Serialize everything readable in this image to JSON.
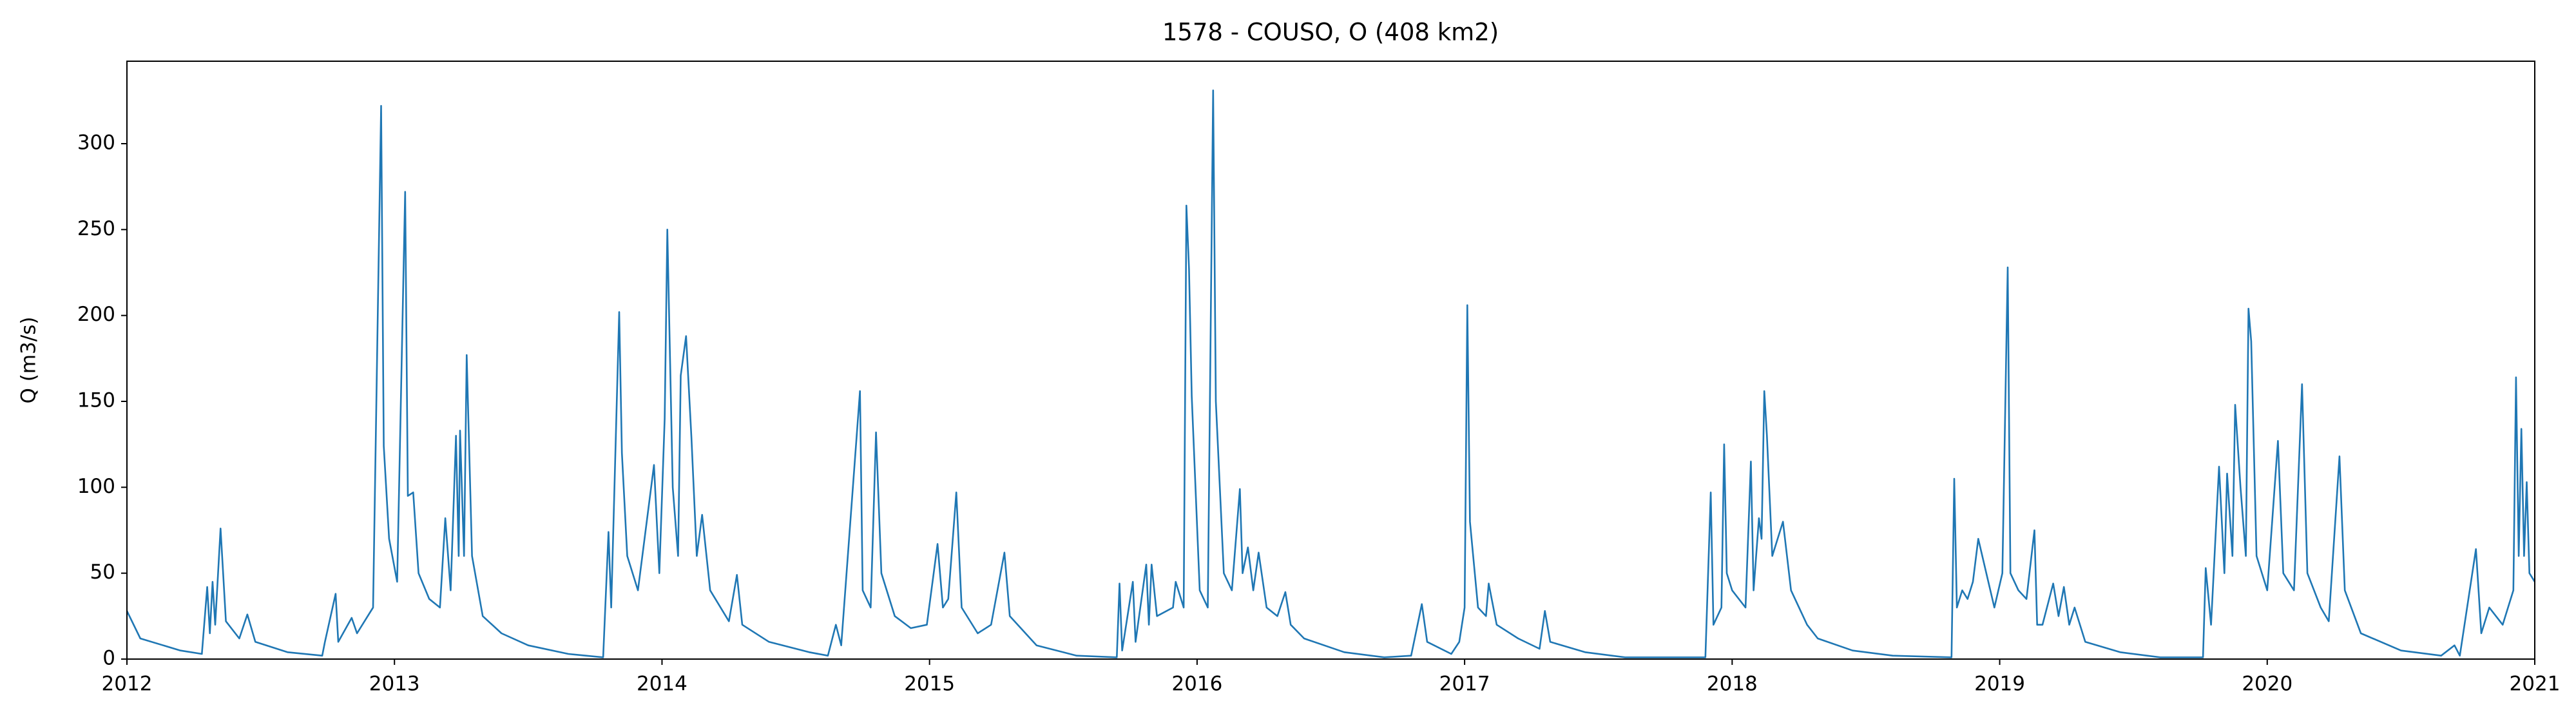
{
  "chart_data": {
    "type": "line",
    "title": "1578 - COUSO, O (408 km2)",
    "ylabel": "Q (m3/s)",
    "x": [
      2012.0,
      2012.05,
      2012.2,
      2012.28,
      2012.3,
      2012.31,
      2012.32,
      2012.33,
      2012.35,
      2012.37,
      2012.42,
      2012.45,
      2012.48,
      2012.6,
      2012.73,
      2012.74,
      2012.78,
      2012.79,
      2012.84,
      2012.86,
      2012.9,
      2012.92,
      2012.95,
      2012.96,
      2012.98,
      2013.01,
      2013.04,
      2013.05,
      2013.07,
      2013.09,
      2013.13,
      2013.17,
      2013.19,
      2013.21,
      2013.23,
      2013.24,
      2013.245,
      2013.26,
      2013.27,
      2013.29,
      2013.33,
      2013.4,
      2013.5,
      2013.65,
      2013.78,
      2013.8,
      2013.81,
      2013.84,
      2013.85,
      2013.87,
      2013.91,
      2013.97,
      2013.99,
      2014.01,
      2014.02,
      2014.04,
      2014.06,
      2014.07,
      2014.09,
      2014.11,
      2014.13,
      2014.15,
      2014.18,
      2014.25,
      2014.28,
      2014.3,
      2014.4,
      2014.55,
      2014.62,
      2014.65,
      2014.67,
      2014.74,
      2014.75,
      2014.78,
      2014.8,
      2014.82,
      2014.87,
      2014.93,
      2014.99,
      2015.03,
      2015.05,
      2015.07,
      2015.1,
      2015.12,
      2015.18,
      2015.23,
      2015.28,
      2015.3,
      2015.4,
      2015.55,
      2015.7,
      2015.71,
      2015.72,
      2015.76,
      2015.77,
      2015.81,
      2015.82,
      2015.83,
      2015.85,
      2015.91,
      2015.92,
      2015.95,
      2015.96,
      2015.97,
      2015.98,
      2016.01,
      2016.04,
      2016.06,
      2016.07,
      2016.1,
      2016.13,
      2016.16,
      2016.17,
      2016.19,
      2016.21,
      2016.23,
      2016.26,
      2016.3,
      2016.33,
      2016.35,
      2016.4,
      2016.55,
      2016.7,
      2016.8,
      2016.84,
      2016.86,
      2016.95,
      2016.98,
      2017.0,
      2017.01,
      2017.02,
      2017.05,
      2017.08,
      2017.09,
      2017.12,
      2017.2,
      2017.28,
      2017.3,
      2017.32,
      2017.45,
      2017.6,
      2017.9,
      2017.92,
      2017.93,
      2017.96,
      2017.97,
      2017.98,
      2018.0,
      2018.05,
      2018.07,
      2018.08,
      2018.1,
      2018.11,
      2018.12,
      2018.13,
      2018.15,
      2018.19,
      2018.22,
      2018.28,
      2018.32,
      2018.45,
      2018.6,
      2018.82,
      2018.83,
      2018.84,
      2018.86,
      2018.88,
      2018.9,
      2018.92,
      2018.95,
      2018.98,
      2019.01,
      2019.03,
      2019.04,
      2019.07,
      2019.1,
      2019.13,
      2019.14,
      2019.16,
      2019.2,
      2019.22,
      2019.24,
      2019.26,
      2019.28,
      2019.32,
      2019.45,
      2019.6,
      2019.76,
      2019.77,
      2019.79,
      2019.82,
      2019.84,
      2019.85,
      2019.87,
      2019.88,
      2019.9,
      2019.92,
      2019.93,
      2019.94,
      2019.96,
      2020.0,
      2020.04,
      2020.06,
      2020.1,
      2020.13,
      2020.15,
      2020.2,
      2020.23,
      2020.27,
      2020.29,
      2020.35,
      2020.5,
      2020.65,
      2020.7,
      2020.72,
      2020.78,
      2020.8,
      2020.83,
      2020.88,
      2020.92,
      2020.93,
      2020.94,
      2020.95,
      2020.96,
      2020.97,
      2020.98,
      2021.0
    ],
    "series": [
      {
        "color": "#1f77b4",
        "values": [
          28,
          12,
          5,
          3,
          42,
          15,
          45,
          20,
          76,
          22,
          12,
          26,
          10,
          4,
          2,
          10,
          38,
          10,
          24,
          15,
          25,
          30,
          322,
          124,
          70,
          45,
          272,
          95,
          97,
          50,
          35,
          30,
          82,
          40,
          130,
          60,
          133,
          60,
          177,
          60,
          25,
          15,
          8,
          3,
          1,
          74,
          30,
          202,
          120,
          60,
          40,
          113,
          50,
          140,
          250,
          100,
          60,
          165,
          188,
          129,
          60,
          84,
          40,
          22,
          49,
          20,
          10,
          4,
          2,
          20,
          8,
          156,
          40,
          30,
          132,
          50,
          25,
          18,
          20,
          67,
          30,
          35,
          97,
          30,
          15,
          20,
          62,
          25,
          8,
          2,
          1,
          44,
          5,
          45,
          10,
          55,
          20,
          55,
          25,
          30,
          45,
          30,
          264,
          227,
          153,
          40,
          30,
          331,
          150,
          50,
          40,
          99,
          50,
          65,
          40,
          62,
          30,
          25,
          39,
          20,
          12,
          4,
          1,
          2,
          32,
          10,
          3,
          10,
          30,
          206,
          80,
          30,
          25,
          44,
          20,
          12,
          6,
          28,
          10,
          4,
          1,
          1,
          97,
          20,
          30,
          125,
          50,
          40,
          30,
          115,
          40,
          82,
          70,
          156,
          130,
          60,
          80,
          40,
          20,
          12,
          5,
          2,
          1,
          105,
          30,
          40,
          35,
          45,
          70,
          50,
          30,
          50,
          228,
          50,
          40,
          35,
          75,
          20,
          20,
          44,
          25,
          42,
          20,
          30,
          10,
          4,
          1,
          1,
          53,
          20,
          112,
          50,
          108,
          60,
          148,
          100,
          60,
          204,
          185,
          60,
          40,
          127,
          50,
          40,
          160,
          50,
          30,
          22,
          118,
          40,
          15,
          5,
          2,
          8,
          2,
          64,
          15,
          30,
          20,
          40,
          164,
          60,
          134,
          60,
          103,
          50,
          45
        ]
      }
    ],
    "xlim": [
      2012,
      2021
    ],
    "xticks": [
      2012,
      2013,
      2014,
      2015,
      2016,
      2017,
      2018,
      2019,
      2020,
      2021
    ],
    "ylim": [
      0,
      348
    ],
    "yticks": [
      0,
      50,
      100,
      150,
      200,
      250,
      300
    ]
  }
}
